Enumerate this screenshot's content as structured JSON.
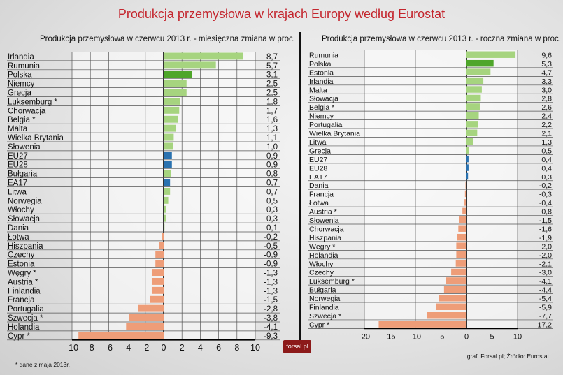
{
  "title": "Produkcja przemysłowa w krajach Europy według Eurostat",
  "logo": "forsal.pl",
  "footnote": "* dane z maja 2013r.",
  "source": "graf. Forsal.pl; Źródło: Eurostat",
  "colors": {
    "positive": "#a6d47f",
    "poland": "#4ea62a",
    "aggregate": "#2a72b0",
    "negative": "#ee9d78",
    "title": "#c4262e"
  },
  "chart_data": [
    {
      "type": "bar",
      "title": "Produkcja przemysłowa w czerwcu 2013 r. - miesięczna zmiana w proc.",
      "xlim": [
        -10,
        10
      ],
      "ticks": [
        "-10",
        "-8",
        "-6",
        "-4",
        "-2",
        "0",
        "2",
        "4",
        "6",
        "8",
        "10"
      ],
      "tick_values": [
        -10,
        -8,
        -6,
        -4,
        -2,
        0,
        2,
        4,
        6,
        8,
        10
      ],
      "categories": [
        "Irlandia",
        "Rumunia",
        "Polska",
        "Niemcy",
        "Grecja",
        "Luksemburg *",
        "Chorwacja",
        "Belgia *",
        "Malta",
        "Wielka Brytania",
        "Słowenia",
        "EU27",
        "EU28",
        "Bułgaria",
        "EA17",
        "Litwa",
        "Norwegia",
        "Włochy",
        "Słowacja",
        "Dania",
        "Łotwa",
        "Hiszpania",
        "Czechy",
        "Estonia",
        "Węgry *",
        "Austria *",
        "Finlandia",
        "Francja",
        "Portugalia",
        "Szwecja *",
        "Holandia",
        "Cypr *"
      ],
      "values": [
        8.7,
        5.7,
        3.1,
        2.5,
        2.5,
        1.8,
        1.7,
        1.6,
        1.3,
        1.1,
        1.0,
        0.9,
        0.9,
        0.8,
        0.7,
        0.7,
        0.5,
        0.3,
        0.3,
        0.1,
        -0.2,
        -0.5,
        -0.9,
        -0.9,
        -1.3,
        -1.3,
        -1.3,
        -1.5,
        -2.8,
        -3.8,
        -4.1,
        -9.3
      ],
      "labels": [
        "8,7",
        "5,7",
        "3,1",
        "2,5",
        "2,5",
        "1,8",
        "1,7",
        "1,6",
        "1,3",
        "1,1",
        "1,0",
        "0,9",
        "0,9",
        "0,8",
        "0,7",
        "0,7",
        "0,5",
        "0,3",
        "0,3",
        "0,1",
        "-0,2",
        "-0,5",
        "-0,9",
        "-0,9",
        "-1,3",
        "-1,3",
        "-1,3",
        "-1,5",
        "-2,8",
        "-3,8",
        "-4,1",
        "-9,3"
      ]
    },
    {
      "type": "bar",
      "title": "Produkcja przemysłowa w czerwcu 2013 r. - roczna zmiana w proc.",
      "xlim": [
        -20,
        10
      ],
      "ticks": [
        "-20",
        "-15",
        "-10",
        "-5",
        "0",
        "5",
        "10"
      ],
      "tick_values": [
        -20,
        -15,
        -10,
        -5,
        0,
        5,
        10
      ],
      "categories": [
        "Rumunia",
        "Polska",
        "Estonia",
        "Irlandia",
        "Malta",
        "Słowacja",
        "Belgia *",
        "Niemcy",
        "Portugalia",
        "Wielka Brytania",
        "Litwa",
        "Grecja",
        "EU27",
        "EU28",
        "EA17",
        "Dania",
        "Francja",
        "Łotwa",
        "Austria *",
        "Słowenia",
        "Chorwacja",
        "Hiszpania",
        "Węgry *",
        "Holandia",
        "Włochy",
        "Czechy",
        "Luksemburg *",
        "Bułgaria",
        "Norwegia",
        "Finlandia",
        "Szwecja *",
        "Cypr *"
      ],
      "values": [
        9.6,
        5.3,
        4.7,
        3.3,
        3.0,
        2.8,
        2.6,
        2.4,
        2.2,
        2.1,
        1.3,
        0.5,
        0.4,
        0.4,
        0.3,
        -0.2,
        -0.3,
        -0.4,
        -0.8,
        -1.5,
        -1.6,
        -1.9,
        -2.0,
        -2.0,
        -2.1,
        -3.0,
        -4.1,
        -4.4,
        -5.4,
        -5.9,
        -7.7,
        -17.2
      ],
      "labels": [
        "9,6",
        "5,3",
        "4,7",
        "3,3",
        "3,0",
        "2,8",
        "2,6",
        "2,4",
        "2,2",
        "2,1",
        "1,3",
        "0,5",
        "0,4",
        "0,4",
        "0,3",
        "-0,2",
        "-0,3",
        "-0,4",
        "-0,8",
        "-1,5",
        "-1,6",
        "-1,9",
        "-2,0",
        "-2,0",
        "-2,1",
        "-3,0",
        "-4,1",
        "-4,4",
        "-5,4",
        "-5,9",
        "-7,7",
        "-17,2"
      ]
    }
  ]
}
